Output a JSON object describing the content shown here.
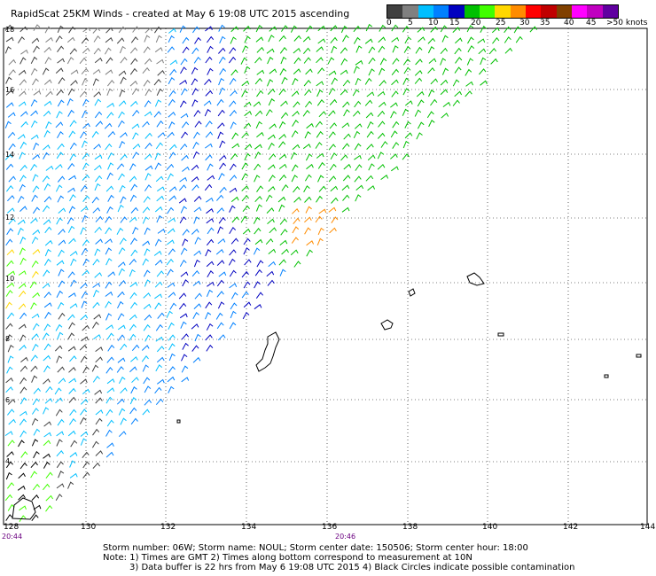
{
  "title": "RapidScat 25KM Winds - created at May  6 19:08 UTC 2015 ascending",
  "colorbar": {
    "colors": [
      "#404040",
      "#808080",
      "#00bfff",
      "#0080ff",
      "#0000c0",
      "#00c000",
      "#40ff00",
      "#ffd700",
      "#ff8c00",
      "#ff0000",
      "#c00000",
      "#804000",
      "#ff00ff",
      "#c000c0",
      "#6000a0"
    ],
    "labels": [
      "0",
      "5",
      "10",
      "15",
      "20",
      "25",
      "30",
      "35",
      "40",
      "45",
      ">50 knots"
    ]
  },
  "map": {
    "lat_labels": [
      "18",
      "16",
      "14",
      "12",
      "10",
      "8",
      "6",
      "4"
    ],
    "lon_labels": [
      "128",
      "130",
      "132",
      "134",
      "136",
      "138",
      "140",
      "142",
      "144"
    ],
    "time_labels": [
      "20:44",
      "20:46"
    ]
  },
  "footer": {
    "line1": "Storm number: 06W;  Storm name: NOUL;  Storm center date: 150506;  Storm center hour: 18:00",
    "line2": "Note: 1) Times are GMT  2) Times along bottom correspond to measurement at 10N",
    "line3": "3) Data buffer is 22 hrs from May  6 19:08 UTC 2015   4) Black Circles indicate possible contamination"
  }
}
